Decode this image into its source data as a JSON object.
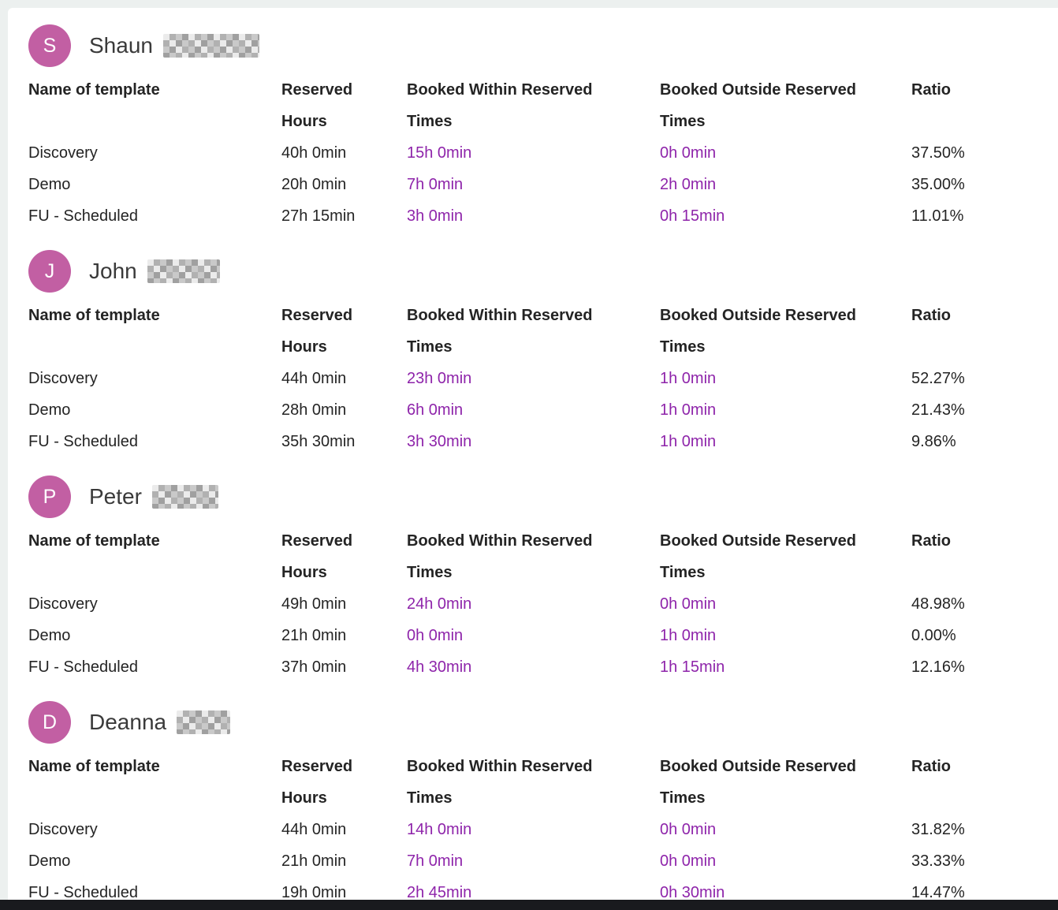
{
  "colors": {
    "page_background": "#ecf0ef",
    "card_background": "#ffffff",
    "link_purple": "#8e24aa",
    "avatar_magenta": "#c25fa3",
    "text_dark": "#242424",
    "bottom_bar": "#191a1e"
  },
  "table_headers": {
    "template": "Name of template",
    "reserved": "Reserved Hours",
    "within": "Booked Within Reserved Times",
    "outside": "Booked Outside Reserved Times",
    "ratio": "Ratio"
  },
  "sections": [
    {
      "initial": "S",
      "first_name": "Shaun",
      "rows": [
        {
          "template": "Discovery",
          "reserved": "40h 0min",
          "within": "15h 0min",
          "outside": "0h 0min",
          "ratio": "37.50%"
        },
        {
          "template": "Demo",
          "reserved": "20h 0min",
          "within": "7h 0min",
          "outside": "2h 0min",
          "ratio": "35.00%"
        },
        {
          "template": "FU - Scheduled",
          "reserved": "27h 15min",
          "within": "3h 0min",
          "outside": "0h 15min",
          "ratio": "11.01%"
        }
      ]
    },
    {
      "initial": "J",
      "first_name": "John",
      "rows": [
        {
          "template": "Discovery",
          "reserved": "44h 0min",
          "within": "23h 0min",
          "outside": "1h 0min",
          "ratio": "52.27%"
        },
        {
          "template": "Demo",
          "reserved": "28h 0min",
          "within": "6h 0min",
          "outside": "1h 0min",
          "ratio": "21.43%"
        },
        {
          "template": "FU - Scheduled",
          "reserved": "35h 30min",
          "within": "3h 30min",
          "outside": "1h 0min",
          "ratio": "9.86%"
        }
      ]
    },
    {
      "initial": "P",
      "first_name": "Peter",
      "rows": [
        {
          "template": "Discovery",
          "reserved": "49h 0min",
          "within": "24h 0min",
          "outside": "0h 0min",
          "ratio": "48.98%"
        },
        {
          "template": "Demo",
          "reserved": "21h 0min",
          "within": "0h 0min",
          "outside": "1h 0min",
          "ratio": "0.00%"
        },
        {
          "template": "FU - Scheduled",
          "reserved": "37h 0min",
          "within": "4h 30min",
          "outside": "1h 15min",
          "ratio": "12.16%"
        }
      ]
    },
    {
      "initial": "D",
      "first_name": "Deanna",
      "rows": [
        {
          "template": "Discovery",
          "reserved": "44h 0min",
          "within": "14h 0min",
          "outside": "0h 0min",
          "ratio": "31.82%"
        },
        {
          "template": "Demo",
          "reserved": "21h 0min",
          "within": "7h 0min",
          "outside": "0h 0min",
          "ratio": "33.33%"
        },
        {
          "template": "FU - Scheduled",
          "reserved": "19h 0min",
          "within": "2h 45min",
          "outside": "0h 30min",
          "ratio": "14.47%"
        }
      ]
    }
  ]
}
